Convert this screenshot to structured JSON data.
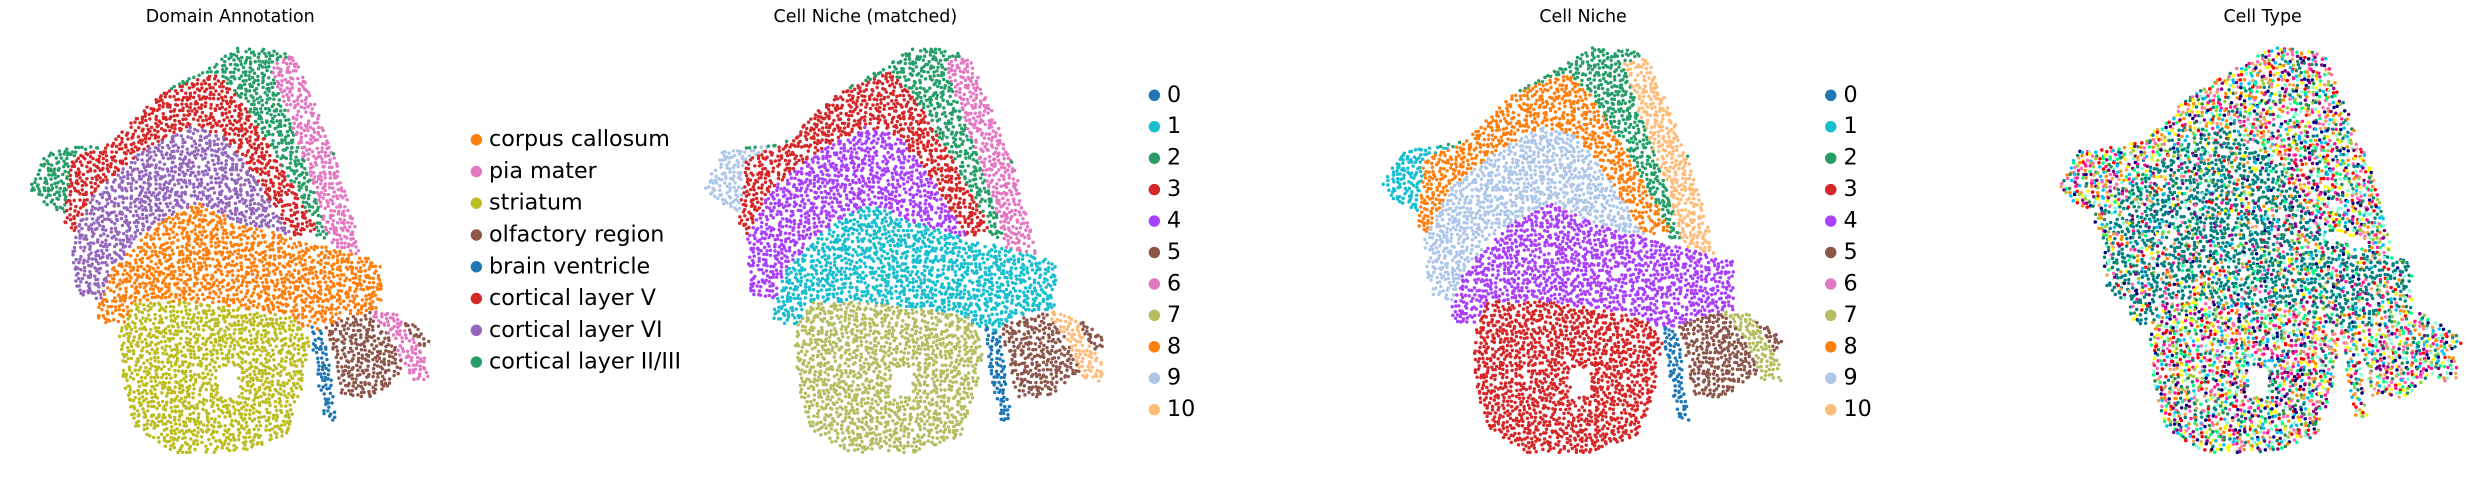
{
  "chart_data": [
    {
      "type": "spatial",
      "title": "Domain Annotation",
      "legend": [
        {
          "name": "corpus callosum",
          "color": "#ff7f0e"
        },
        {
          "name": "pia mater",
          "color": "#e377c2"
        },
        {
          "name": "striatum",
          "color": "#bcbd22"
        },
        {
          "name": "olfactory region",
          "color": "#8c564b"
        },
        {
          "name": "brain ventricle",
          "color": "#1f77b4"
        },
        {
          "name": "cortical layer V",
          "color": "#d62728"
        },
        {
          "name": "cortical layer VI",
          "color": "#9467bd"
        },
        {
          "name": "cortical layer II/III",
          "color": "#279e68"
        }
      ]
    },
    {
      "type": "spatial",
      "title": "Cell Niche (matched)",
      "legend": [
        {
          "name": "0",
          "color": "#1f77b4"
        },
        {
          "name": "1",
          "color": "#17becf"
        },
        {
          "name": "2",
          "color": "#279e68"
        },
        {
          "name": "3",
          "color": "#d62728"
        },
        {
          "name": "4",
          "color": "#aa40fc"
        },
        {
          "name": "5",
          "color": "#8c564b"
        },
        {
          "name": "6",
          "color": "#e377c2"
        },
        {
          "name": "7",
          "color": "#b5bd61"
        },
        {
          "name": "8",
          "color": "#ff7f0e"
        },
        {
          "name": "9",
          "color": "#aec7e8"
        },
        {
          "name": "10",
          "color": "#ffbb78"
        }
      ]
    },
    {
      "type": "spatial",
      "title": "Cell Niche",
      "legend": [
        {
          "name": "0",
          "color": "#1f77b4"
        },
        {
          "name": "1",
          "color": "#17becf"
        },
        {
          "name": "2",
          "color": "#279e68"
        },
        {
          "name": "3",
          "color": "#d62728"
        },
        {
          "name": "4",
          "color": "#aa40fc"
        },
        {
          "name": "5",
          "color": "#8c564b"
        },
        {
          "name": "6",
          "color": "#e377c2"
        },
        {
          "name": "7",
          "color": "#b5bd61"
        },
        {
          "name": "8",
          "color": "#ff7f0e"
        },
        {
          "name": "9",
          "color": "#aec7e8"
        },
        {
          "name": "10",
          "color": "#ffbb78"
        }
      ]
    },
    {
      "type": "spatial",
      "title": "Cell Type",
      "colors": [
        "#008080",
        "#ff1493",
        "#ffff00",
        "#000080",
        "#00ff7f",
        "#ff8c00",
        "#800080",
        "#ff69b4",
        "#7fffd4",
        "#00bfff",
        "#ff0000",
        "#2e8b57",
        "#f4a460",
        "#9acd32"
      ]
    }
  ]
}
